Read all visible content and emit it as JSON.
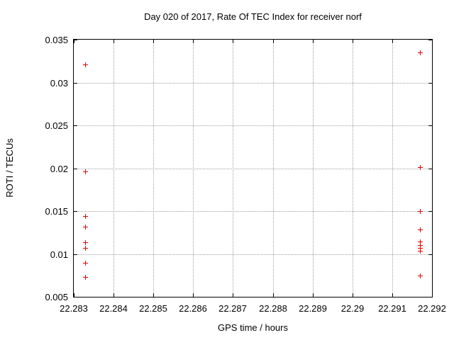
{
  "chart_data": {
    "type": "scatter",
    "title": "Day 020 of 2017, Rate Of TEC Index for receiver norf",
    "xlabel": "GPS time / hours",
    "ylabel": "ROTI / TECUs",
    "xlim": [
      22.283,
      22.292
    ],
    "ylim": [
      0.005,
      0.035
    ],
    "grid": true,
    "legend": "none",
    "marker": "plus",
    "colors": {
      "marker": "#e80000",
      "grid": "#a0a0a0",
      "axis": "#000000",
      "text": "#000000",
      "background": "#ffffff"
    },
    "x_ticks": [
      {
        "v": 22.283,
        "label": "22.283"
      },
      {
        "v": 22.284,
        "label": "22.284"
      },
      {
        "v": 22.285,
        "label": "22.285"
      },
      {
        "v": 22.286,
        "label": "22.286"
      },
      {
        "v": 22.287,
        "label": "22.287"
      },
      {
        "v": 22.288,
        "label": "22.288"
      },
      {
        "v": 22.289,
        "label": "22.289"
      },
      {
        "v": 22.29,
        "label": "22.29"
      },
      {
        "v": 22.291,
        "label": "22.291"
      },
      {
        "v": 22.292,
        "label": "22.292"
      }
    ],
    "y_ticks": [
      {
        "v": 0.035,
        "label": "0.035"
      },
      {
        "v": 0.03,
        "label": "0.03"
      },
      {
        "v": 0.025,
        "label": "0.025"
      },
      {
        "v": 0.02,
        "label": "0.02"
      },
      {
        "v": 0.015,
        "label": "0.015"
      },
      {
        "v": 0.01,
        "label": "0.01"
      },
      {
        "v": 0.005,
        "label": "0.005"
      }
    ],
    "series": [
      {
        "name": "ROTI",
        "points": [
          [
            22.2833,
            0.0321
          ],
          [
            22.2833,
            0.0196
          ],
          [
            22.2833,
            0.0144
          ],
          [
            22.2833,
            0.0131
          ],
          [
            22.2833,
            0.0113
          ],
          [
            22.2833,
            0.0107
          ],
          [
            22.2833,
            0.0089
          ],
          [
            22.2833,
            0.0073
          ],
          [
            22.2917,
            0.0335
          ],
          [
            22.2917,
            0.0201
          ],
          [
            22.2917,
            0.015
          ],
          [
            22.2917,
            0.0128
          ],
          [
            22.2917,
            0.0114
          ],
          [
            22.2917,
            0.011
          ],
          [
            22.2917,
            0.0107
          ],
          [
            22.2917,
            0.0103
          ],
          [
            22.2917,
            0.0074
          ]
        ]
      }
    ]
  }
}
